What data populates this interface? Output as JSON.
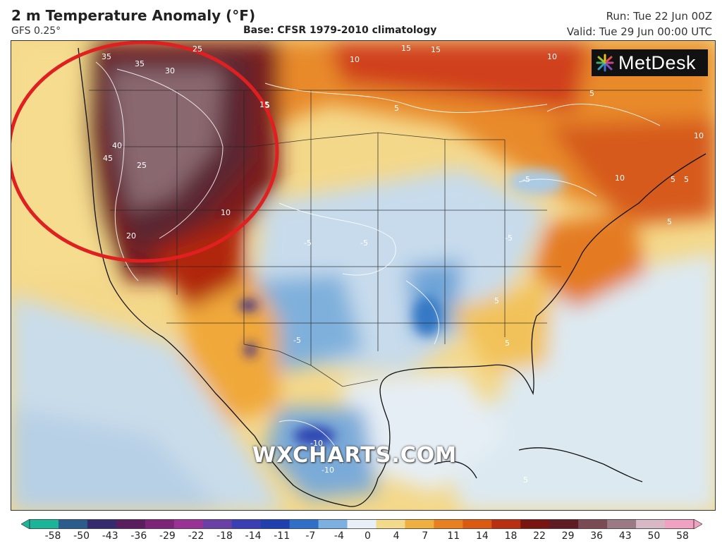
{
  "header": {
    "title": "2 m Temperature Anomaly (°F)",
    "model": "GFS 0.25°",
    "base": "Base: CFSR 1979-2010 climatology",
    "run": "Run: Tue 22 Jun 00Z",
    "valid": "Valid: Tue 29 Jun 00:00 UTC"
  },
  "logo": {
    "text": "MetDesk",
    "icon": "metdesk-logo-icon"
  },
  "watermark": "WXCHARTS.COM",
  "legend": {
    "ticks": [
      "-58",
      "-50",
      "-43",
      "-36",
      "-29",
      "-22",
      "-18",
      "-14",
      "-11",
      "-7",
      "-4",
      "0",
      "4",
      "7",
      "11",
      "14",
      "18",
      "22",
      "29",
      "36",
      "43",
      "50",
      "58"
    ],
    "colors": [
      "#1bb59a",
      "#2b5d8c",
      "#352a6e",
      "#5a1e5e",
      "#7d2478",
      "#9a3296",
      "#6a3fa6",
      "#3b3fb4",
      "#2040b0",
      "#2f6fc8",
      "#7bb0e0",
      "#e8eff6",
      "#f3d98a",
      "#f0b040",
      "#e88020",
      "#dc5a10",
      "#b83010",
      "#7a1410",
      "#5e1b22",
      "#7a4a55",
      "#9b7a85",
      "#d8b8c4",
      "#f0a0c0"
    ]
  },
  "contour_labels": [
    "35",
    "25",
    "30",
    "35",
    "15",
    "40",
    "45",
    "25",
    "20",
    "10",
    "10",
    "15",
    "15",
    "10",
    "5",
    "5",
    "5",
    "5",
    "10",
    "10",
    "5",
    "5",
    "-5",
    "-5",
    "-5",
    "-5",
    "-10",
    "-10",
    "5",
    "5",
    "-5",
    "5"
  ],
  "annotation": {
    "shape": "circle",
    "color": "#e02020",
    "target": "Pacific Northwest heat anomaly"
  }
}
